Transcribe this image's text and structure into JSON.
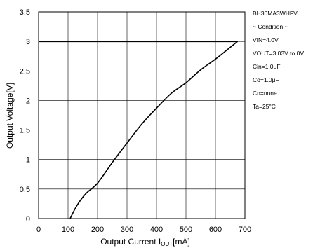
{
  "chart_data": {
    "type": "line",
    "title": "",
    "xlabel": "Output Current",
    "xlabel_sub": "OUT",
    "xlabel_prefix": "I",
    "xlabel_unit": "[mA]",
    "ylabel": "Output Voltage[V]",
    "xlim": [
      0,
      700
    ],
    "ylim": [
      0,
      3.5
    ],
    "xticks": [
      0,
      100,
      200,
      300,
      400,
      500,
      600,
      700
    ],
    "yticks": [
      0,
      0.5,
      1,
      1.5,
      2,
      2.5,
      3,
      3.5
    ],
    "grid": true,
    "series": [
      {
        "values_x": [
          0,
          100,
          500,
          600,
          675
        ],
        "values_y": [
          3.0,
          3.0,
          3.0,
          3.0,
          3.0
        ]
      },
      {
        "values_x": [
          107,
          130,
          160,
          200,
          250,
          300,
          350,
          400,
          450,
          500,
          550,
          600,
          650,
          675
        ],
        "values_y": [
          0.0,
          0.22,
          0.42,
          0.6,
          0.95,
          1.28,
          1.6,
          1.87,
          2.12,
          2.3,
          2.52,
          2.7,
          2.9,
          3.0
        ]
      }
    ]
  },
  "legend_lines": [
    "BH30MA3WHFV",
    "~ Condition ~",
    "VIN=4.0V",
    "VOUT=3.03V to 0V",
    "Cin=1.0μF",
    "Co=1.0μF",
    "Cn=none",
    "Ta=25°C"
  ]
}
